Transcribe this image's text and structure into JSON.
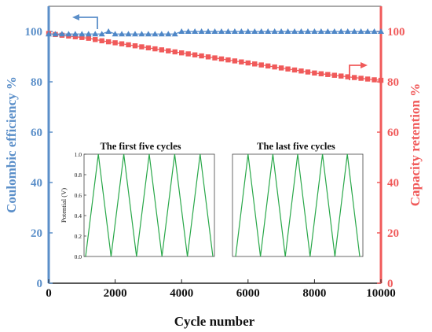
{
  "colors": {
    "left_axis": "#5b8fc9",
    "right_axis": "#f05a5a",
    "coulombic_series": "#4f87c7",
    "retention_series": "#f05a5a",
    "inset_line": "#2aa84a"
  },
  "chart_data": [
    {
      "type": "scatter",
      "title": "",
      "xlabel": "Cycle number",
      "ylabel_left": "Coulombic efficiency %",
      "ylabel_right": "Capacity retention %",
      "xlim": [
        0,
        10000
      ],
      "ylim_left": [
        0,
        110
      ],
      "ylim_right": [
        0,
        110
      ],
      "x_ticks": [
        "0",
        "2000",
        "4000",
        "6000",
        "8000",
        "10000"
      ],
      "y_ticks_left": [
        "0",
        "20",
        "40",
        "60",
        "80",
        "100"
      ],
      "y_ticks_right": [
        "0",
        "20",
        "40",
        "60",
        "80",
        "100"
      ],
      "series": [
        {
          "axis": "left",
          "marker": "triangle",
          "color": "#4f87c7",
          "x": [
            0,
            200,
            400,
            600,
            800,
            1000,
            1200,
            1400,
            1600,
            1800,
            2000,
            2200,
            2400,
            2600,
            2800,
            3000,
            3200,
            3400,
            3600,
            3800,
            4000,
            4200,
            4400,
            4600,
            4800,
            5000,
            5200,
            5400,
            5600,
            5800,
            6000,
            6200,
            6400,
            6600,
            6800,
            7000,
            7200,
            7400,
            7600,
            7800,
            8000,
            8200,
            8400,
            8600,
            8800,
            9000,
            9200,
            9400,
            9600,
            9800,
            10000
          ],
          "values": [
            99,
            99,
            99,
            99,
            99,
            99,
            99,
            99,
            99,
            100,
            99,
            99,
            99,
            99,
            99,
            99,
            99,
            99,
            99,
            99,
            100,
            100,
            100,
            100,
            100,
            100,
            100,
            100,
            100,
            100,
            100,
            100,
            100,
            100,
            100,
            100,
            100,
            100,
            100,
            100,
            100,
            100,
            100,
            100,
            100,
            100,
            100,
            100,
            100,
            100,
            100
          ]
        },
        {
          "axis": "right",
          "marker": "square",
          "color": "#f05a5a",
          "x": [
            0,
            200,
            400,
            600,
            800,
            1000,
            1200,
            1400,
            1600,
            1800,
            2000,
            2200,
            2400,
            2600,
            2800,
            3000,
            3200,
            3400,
            3600,
            3800,
            4000,
            4200,
            4400,
            4600,
            4800,
            5000,
            5200,
            5400,
            5600,
            5800,
            6000,
            6200,
            6400,
            6600,
            6800,
            7000,
            7200,
            7400,
            7600,
            7800,
            8000,
            8200,
            8400,
            8600,
            8800,
            9000,
            9200,
            9400,
            9600,
            9800,
            10000
          ],
          "values": [
            99.2,
            98.8,
            98.5,
            98.2,
            97.9,
            97.6,
            97.3,
            96.8,
            96.3,
            95.9,
            95.5,
            95.1,
            94.7,
            94.3,
            93.9,
            93.5,
            93.1,
            92.7,
            92.3,
            91.9,
            91.5,
            91.1,
            90.7,
            90.3,
            89.9,
            89.5,
            89.1,
            88.7,
            88.3,
            87.9,
            87.5,
            87.1,
            86.7,
            86.3,
            85.9,
            85.5,
            85.1,
            84.7,
            84.3,
            83.9,
            83.5,
            83.2,
            82.9,
            82.6,
            82.3,
            82.0,
            81.7,
            81.4,
            81.1,
            80.8,
            80.6
          ]
        }
      ]
    },
    {
      "type": "line",
      "title": "The first five cycles",
      "ylabel": "Potential (V)",
      "ylim": [
        0,
        1
      ],
      "y_ticks": [
        "1.0",
        "0.8",
        "0.6",
        "0.4",
        "0.2",
        "0.0"
      ],
      "cycles": 5,
      "vmin": 0.0,
      "vmax": 1.0
    },
    {
      "type": "line",
      "title": "The last five cycles",
      "ylim": [
        0,
        1
      ],
      "cycles": 5,
      "vmin": 0.0,
      "vmax": 1.0
    }
  ]
}
